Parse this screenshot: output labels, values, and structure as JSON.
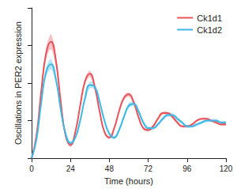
{
  "chart_data": {
    "type": "line",
    "xlabel": "Time (hours)",
    "ylabel": "Oscillations in PER2 expression",
    "x": [
      0,
      3,
      6,
      9,
      12,
      15,
      18,
      21,
      24,
      27,
      30,
      33,
      36,
      39,
      42,
      45,
      48,
      51,
      54,
      57,
      60,
      63,
      66,
      69,
      72,
      75,
      78,
      81,
      84,
      87,
      90,
      93,
      96,
      99,
      102,
      105,
      108,
      111,
      114,
      117,
      120
    ],
    "series": [
      {
        "name": "Ck1d1",
        "color": "#e8545c",
        "values": [
          0.0,
          0.6,
          1.8,
          2.8,
          3.1,
          2.6,
          1.5,
          0.6,
          0.35,
          0.7,
          1.4,
          2.05,
          2.25,
          1.9,
          1.25,
          0.7,
          0.55,
          0.8,
          1.25,
          1.6,
          1.7,
          1.5,
          1.1,
          0.8,
          0.75,
          0.85,
          1.05,
          1.2,
          1.2,
          1.1,
          0.95,
          0.85,
          0.85,
          0.9,
          1.0,
          1.05,
          1.05,
          1.0,
          0.95,
          0.9,
          0.9
        ],
        "error": [
          0.0,
          0.05,
          0.1,
          0.15,
          0.2,
          0.15,
          0.1,
          0.05,
          0.05,
          0.05,
          0.05,
          0.07,
          0.08,
          0.07,
          0.05,
          0.04,
          0.04,
          0.04,
          0.05,
          0.06,
          0.06,
          0.05,
          0.04,
          0.04,
          0.04,
          0.04,
          0.04,
          0.04,
          0.04,
          0.04,
          0.03,
          0.03,
          0.03,
          0.03,
          0.03,
          0.03,
          0.03,
          0.03,
          0.03,
          0.03,
          0.03
        ]
      },
      {
        "name": "Ck1d2",
        "color": "#3fb8e6",
        "values": [
          0.0,
          0.5,
          1.5,
          2.3,
          2.5,
          2.1,
          1.3,
          0.65,
          0.4,
          0.55,
          1.0,
          1.6,
          1.95,
          1.9,
          1.5,
          1.0,
          0.65,
          0.55,
          0.75,
          1.1,
          1.4,
          1.45,
          1.25,
          0.95,
          0.8,
          0.8,
          0.9,
          1.05,
          1.15,
          1.15,
          1.05,
          0.95,
          0.85,
          0.85,
          0.9,
          0.95,
          1.0,
          1.0,
          1.0,
          0.95,
          0.95
        ],
        "error": [
          0.0,
          0.04,
          0.08,
          0.12,
          0.14,
          0.1,
          0.07,
          0.05,
          0.05,
          0.05,
          0.06,
          0.08,
          0.09,
          0.08,
          0.06,
          0.05,
          0.05,
          0.05,
          0.05,
          0.06,
          0.07,
          0.07,
          0.06,
          0.05,
          0.05,
          0.05,
          0.05,
          0.05,
          0.05,
          0.05,
          0.05,
          0.04,
          0.04,
          0.04,
          0.04,
          0.04,
          0.04,
          0.04,
          0.04,
          0.04,
          0.04
        ]
      }
    ],
    "xlim": [
      0,
      120
    ],
    "xticks": [
      0,
      24,
      48,
      72,
      96,
      120
    ],
    "ylim": [
      0,
      4
    ],
    "yticks": [
      0,
      1,
      2,
      3,
      4
    ],
    "tick_labels": "x",
    "grid": false,
    "legend": "upper right"
  }
}
